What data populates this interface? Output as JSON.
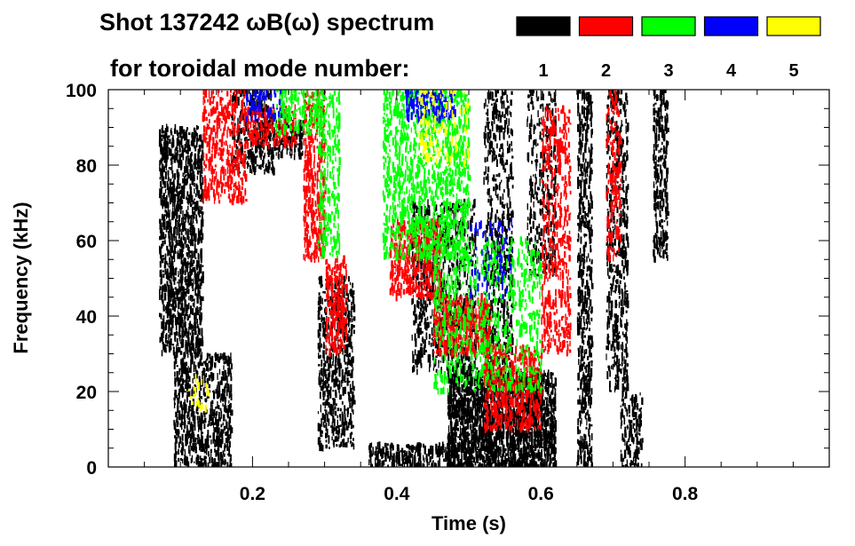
{
  "chart_data": {
    "type": "heatmap",
    "title_line1": "Shot 137242 ωB(ω) spectrum",
    "title_line2": "for toroidal mode number:",
    "xlabel": "Time (s)",
    "ylabel": "Frequency (kHz)",
    "xlim": [
      0.0,
      1.0
    ],
    "ylim": [
      0,
      100
    ],
    "x_ticks": [
      0.2,
      0.4,
      0.6,
      0.8
    ],
    "x_tick_labels": [
      "0.2",
      "0.4",
      "0.6",
      "0.8"
    ],
    "y_ticks": [
      0,
      20,
      40,
      60,
      80,
      100
    ],
    "y_tick_labels": [
      "0",
      "20",
      "40",
      "60",
      "80",
      "100"
    ],
    "legend": [
      {
        "label": "1",
        "color": "#000000"
      },
      {
        "label": "2",
        "color": "#ff0000"
      },
      {
        "label": "3",
        "color": "#00ff00"
      },
      {
        "label": "4",
        "color": "#0000ff"
      },
      {
        "label": "5",
        "color": "#ffff00"
      }
    ],
    "mode_colors": {
      "1": "#000000",
      "2": "#ff0000",
      "3": "#00ff00",
      "4": "#0000ff",
      "5": "#ffff00"
    },
    "regions": [
      {
        "mode": 1,
        "t": [
          0.07,
          0.13
        ],
        "f": [
          30,
          90
        ],
        "density": 0.55
      },
      {
        "mode": 1,
        "t": [
          0.09,
          0.17
        ],
        "f": [
          0,
          30
        ],
        "density": 0.45
      },
      {
        "mode": 1,
        "t": [
          0.17,
          0.23
        ],
        "f": [
          78,
          100
        ],
        "density": 0.35
      },
      {
        "mode": 1,
        "t": [
          0.2,
          0.27
        ],
        "f": [
          82,
          92
        ],
        "density": 0.4
      },
      {
        "mode": 1,
        "t": [
          0.29,
          0.34
        ],
        "f": [
          5,
          50
        ],
        "density": 0.4
      },
      {
        "mode": 1,
        "t": [
          0.42,
          0.51
        ],
        "f": [
          25,
          70
        ],
        "density": 0.3
      },
      {
        "mode": 1,
        "t": [
          0.47,
          0.62
        ],
        "f": [
          0,
          25
        ],
        "density": 0.85
      },
      {
        "mode": 1,
        "t": [
          0.52,
          0.56
        ],
        "f": [
          25,
          100
        ],
        "density": 0.3
      },
      {
        "mode": 1,
        "t": [
          0.58,
          0.62
        ],
        "f": [
          50,
          100
        ],
        "density": 0.25
      },
      {
        "mode": 1,
        "t": [
          0.65,
          0.67
        ],
        "f": [
          0,
          100
        ],
        "density": 0.45
      },
      {
        "mode": 1,
        "t": [
          0.69,
          0.72
        ],
        "f": [
          20,
          100
        ],
        "density": 0.35
      },
      {
        "mode": 1,
        "t": [
          0.71,
          0.74
        ],
        "f": [
          0,
          20
        ],
        "density": 0.4
      },
      {
        "mode": 1,
        "t": [
          0.755,
          0.775
        ],
        "f": [
          55,
          100
        ],
        "density": 0.5
      },
      {
        "mode": 1,
        "t": [
          0.36,
          0.48
        ],
        "f": [
          0,
          6
        ],
        "density": 0.5
      },
      {
        "mode": 2,
        "t": [
          0.13,
          0.19
        ],
        "f": [
          70,
          100
        ],
        "density": 0.35
      },
      {
        "mode": 2,
        "t": [
          0.19,
          0.26
        ],
        "f": [
          85,
          95
        ],
        "density": 0.4
      },
      {
        "mode": 2,
        "t": [
          0.27,
          0.3
        ],
        "f": [
          55,
          100
        ],
        "density": 0.45
      },
      {
        "mode": 2,
        "t": [
          0.3,
          0.33
        ],
        "f": [
          30,
          55
        ],
        "density": 0.45
      },
      {
        "mode": 2,
        "t": [
          0.39,
          0.46
        ],
        "f": [
          45,
          65
        ],
        "density": 0.45
      },
      {
        "mode": 2,
        "t": [
          0.45,
          0.53
        ],
        "f": [
          30,
          45
        ],
        "density": 0.5
      },
      {
        "mode": 2,
        "t": [
          0.52,
          0.6
        ],
        "f": [
          10,
          32
        ],
        "density": 0.45
      },
      {
        "mode": 2,
        "t": [
          0.6,
          0.64
        ],
        "f": [
          30,
          95
        ],
        "density": 0.3
      },
      {
        "mode": 2,
        "t": [
          0.69,
          0.71
        ],
        "f": [
          55,
          100
        ],
        "density": 0.3
      },
      {
        "mode": 3,
        "t": [
          0.23,
          0.3
        ],
        "f": [
          88,
          100
        ],
        "density": 0.35
      },
      {
        "mode": 3,
        "t": [
          0.29,
          0.32
        ],
        "f": [
          55,
          100
        ],
        "density": 0.3
      },
      {
        "mode": 3,
        "t": [
          0.38,
          0.5
        ],
        "f": [
          55,
          100
        ],
        "density": 0.35
      },
      {
        "mode": 3,
        "t": [
          0.45,
          0.6
        ],
        "f": [
          20,
          60
        ],
        "density": 0.2
      },
      {
        "mode": 4,
        "t": [
          0.41,
          0.48
        ],
        "f": [
          92,
          100
        ],
        "density": 0.4
      },
      {
        "mode": 4,
        "t": [
          0.19,
          0.24
        ],
        "f": [
          92,
          100
        ],
        "density": 0.25
      },
      {
        "mode": 4,
        "t": [
          0.5,
          0.56
        ],
        "f": [
          45,
          65
        ],
        "density": 0.1
      },
      {
        "mode": 5,
        "t": [
          0.43,
          0.5
        ],
        "f": [
          80,
          100
        ],
        "density": 0.15
      },
      {
        "mode": 5,
        "t": [
          0.11,
          0.14
        ],
        "f": [
          15,
          25
        ],
        "density": 0.1
      }
    ]
  }
}
